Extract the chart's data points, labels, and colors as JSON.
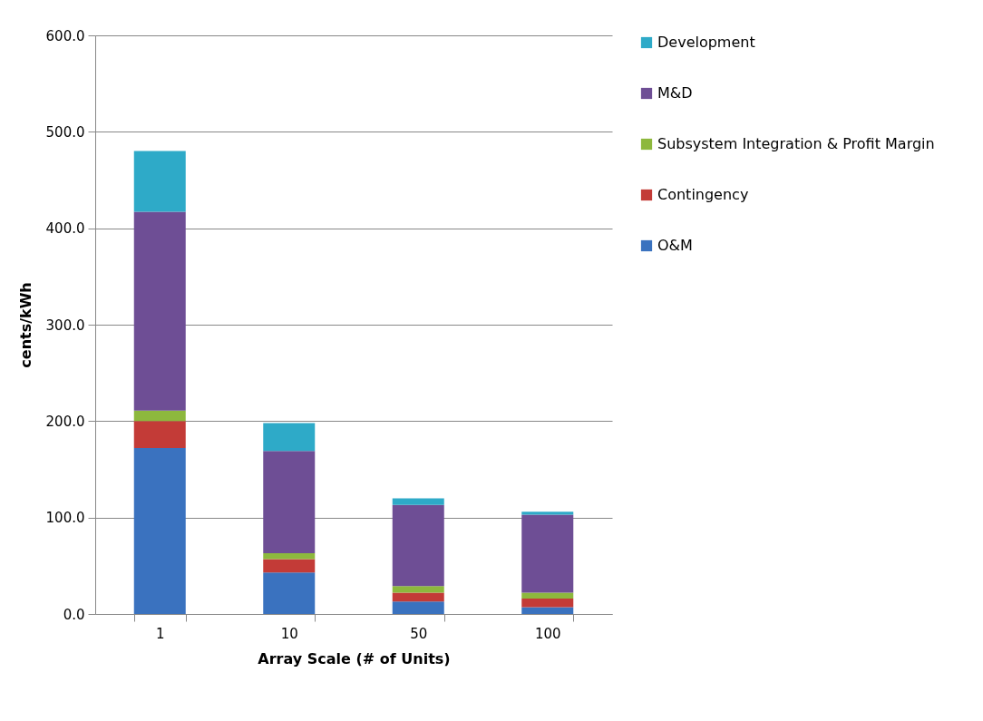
{
  "chart_data": {
    "type": "bar",
    "stacked": true,
    "xlabel": "Array Scale (# of Units)",
    "ylabel": "cents/kWh",
    "categories": [
      "1",
      "10",
      "50",
      "100"
    ],
    "series": [
      {
        "name": "O&M",
        "color": "#3a72bf",
        "values": [
          172,
          43,
          13,
          7
        ]
      },
      {
        "name": "Contingency",
        "color": "#c33b37",
        "values": [
          28,
          14,
          9,
          9
        ]
      },
      {
        "name": "Subsystem Integration & Profit Margin",
        "color": "#8db83d",
        "values": [
          11,
          6,
          7,
          6
        ]
      },
      {
        "name": "M&D",
        "color": "#6e4e95",
        "values": [
          206,
          106,
          84,
          81
        ]
      },
      {
        "name": "Development",
        "color": "#2eaac8",
        "values": [
          63,
          29,
          7,
          3
        ]
      }
    ],
    "ylim": [
      0,
      600
    ],
    "yticks": [
      {
        "value": 0,
        "label": "0.0"
      },
      {
        "value": 100,
        "label": "100.0"
      },
      {
        "value": 200,
        "label": "200.0"
      },
      {
        "value": 300,
        "label": "300.0"
      },
      {
        "value": 400,
        "label": "400.0"
      },
      {
        "value": 500,
        "label": "500.0"
      },
      {
        "value": 600,
        "label": "600.0"
      }
    ],
    "grid": "y",
    "legend": "right"
  }
}
